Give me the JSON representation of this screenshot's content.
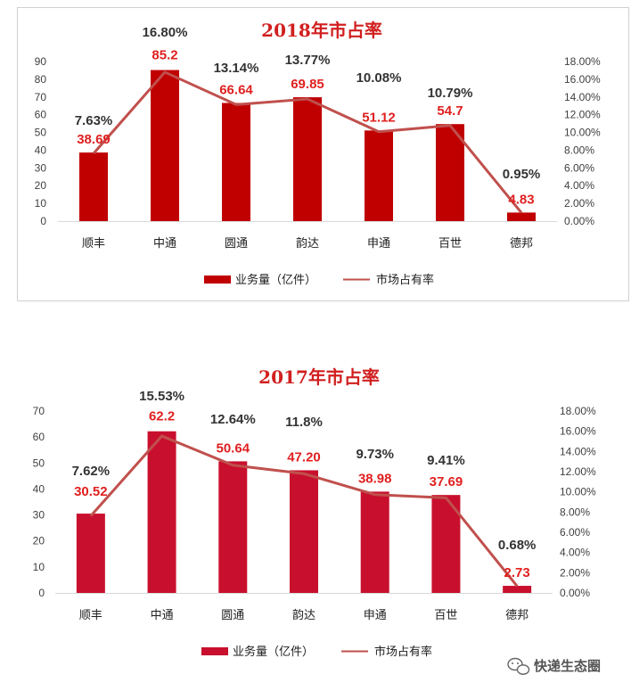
{
  "chart_data": [
    {
      "type": "bar",
      "title": "2018年市占率",
      "categories": [
        "顺丰",
        "中通",
        "圆通",
        "韵达",
        "申通",
        "百世",
        "德邦"
      ],
      "series": [
        {
          "name": "业务量（亿件）",
          "type": "bar",
          "axis": "left",
          "values": [
            38.69,
            85.2,
            66.64,
            69.85,
            51.12,
            54.7,
            4.83
          ],
          "labels": [
            "38.69",
            "85.2",
            "66.64",
            "69.85",
            "51.12",
            "54.7",
            "4.83"
          ]
        },
        {
          "name": "市场占有率",
          "type": "line",
          "axis": "right",
          "values": [
            7.63,
            16.8,
            13.14,
            13.77,
            10.08,
            10.79,
            0.95
          ],
          "labels": [
            "7.63%",
            "16.80%",
            "13.14%",
            "13.77%",
            "10.08%",
            "10.79%",
            "0.95%"
          ]
        }
      ],
      "left_axis": {
        "ylim": [
          0,
          90
        ],
        "ticks": [
          "0",
          "10",
          "20",
          "30",
          "40",
          "50",
          "60",
          "70",
          "80",
          "90"
        ]
      },
      "right_axis": {
        "ylim": [
          0,
          18
        ],
        "ticks": [
          "0.00%",
          "2.00%",
          "4.00%",
          "6.00%",
          "8.00%",
          "10.00%",
          "12.00%",
          "14.00%",
          "16.00%",
          "18.00%"
        ]
      },
      "grid": false,
      "legend": "bottom",
      "colors": {
        "bar": "#c00000",
        "line": "#c0504d",
        "value_label": "#e02020",
        "pct_label": "#333333"
      }
    },
    {
      "type": "bar",
      "title": "2017年市占率",
      "categories": [
        "顺丰",
        "中通",
        "圆通",
        "韵达",
        "申通",
        "百世",
        "德邦"
      ],
      "series": [
        {
          "name": "业务量（亿件）",
          "type": "bar",
          "axis": "left",
          "values": [
            30.52,
            62.2,
            50.64,
            47.2,
            38.98,
            37.69,
            2.73
          ],
          "labels": [
            "30.52",
            "62.2",
            "50.64",
            "47.20",
            "38.98",
            "37.69",
            "2.73"
          ]
        },
        {
          "name": "市场占有率",
          "type": "line",
          "axis": "right",
          "values": [
            7.62,
            15.53,
            12.64,
            11.8,
            9.73,
            9.41,
            0.68
          ],
          "labels": [
            "7.62%",
            "15.53%",
            "12.64%",
            "11.8%",
            "9.73%",
            "9.41%",
            "0.68%"
          ]
        }
      ],
      "left_axis": {
        "ylim": [
          0,
          70
        ],
        "ticks": [
          "0",
          "10",
          "20",
          "30",
          "40",
          "50",
          "60",
          "70"
        ]
      },
      "right_axis": {
        "ylim": [
          0,
          18
        ],
        "ticks": [
          "0.00%",
          "2.00%",
          "4.00%",
          "6.00%",
          "8.00%",
          "10.00%",
          "12.00%",
          "14.00%",
          "16.00%",
          "18.00%"
        ]
      },
      "grid": false,
      "legend": "bottom",
      "colors": {
        "bar": "#c8102e",
        "line": "#c0504d",
        "value_label": "#e02020",
        "pct_label": "#333333"
      }
    }
  ],
  "watermark": {
    "text": "快递生态圈",
    "icon": "wechat-icon"
  }
}
